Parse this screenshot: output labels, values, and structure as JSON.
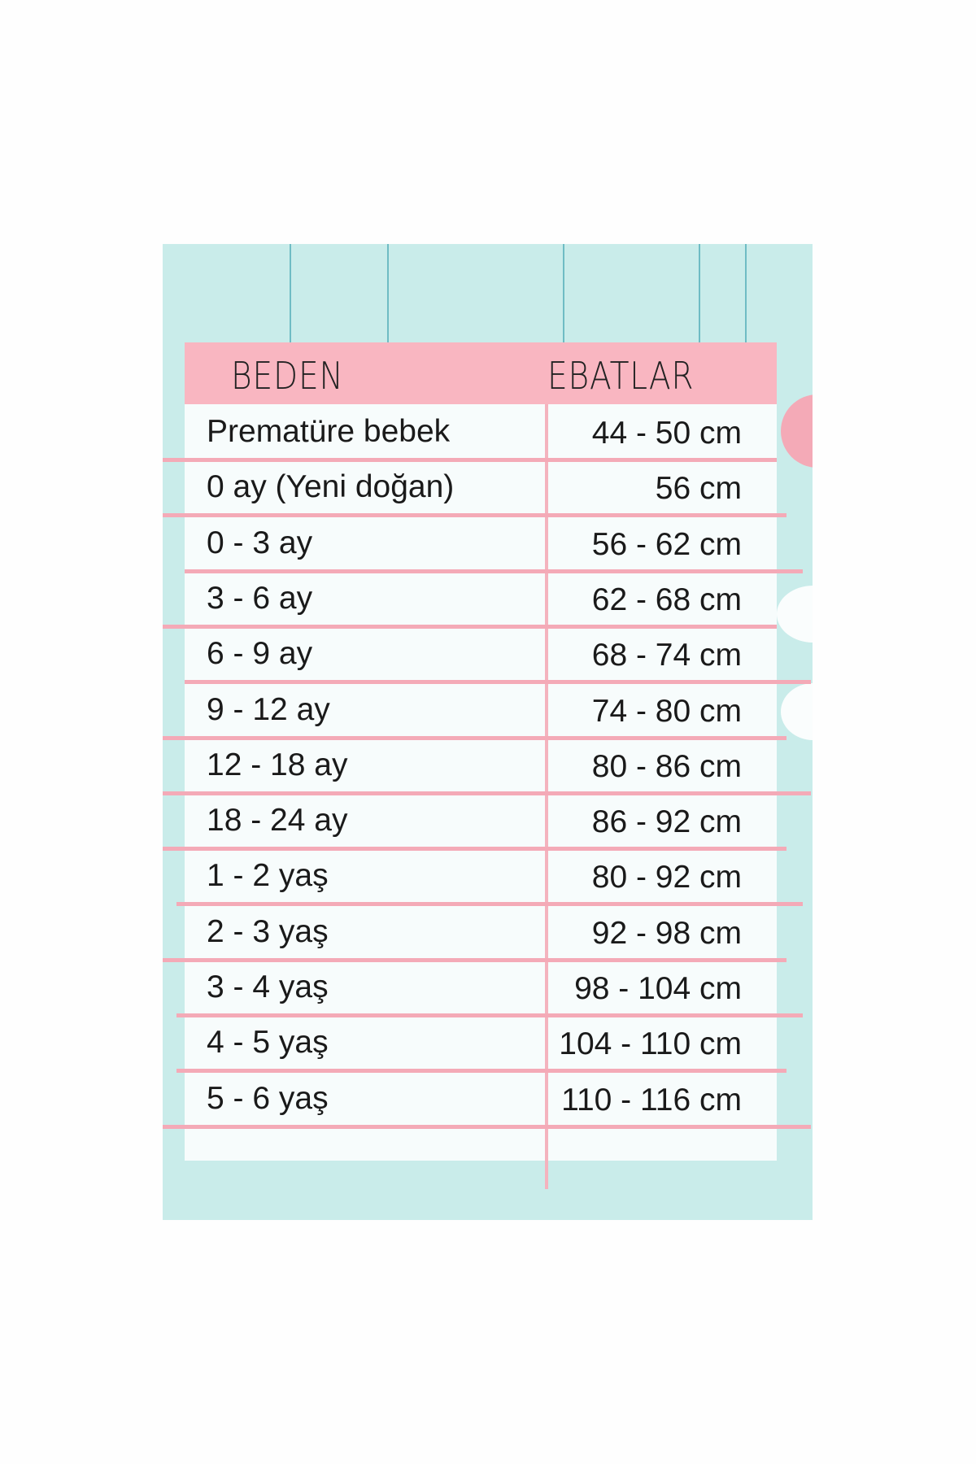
{
  "header": {
    "col1": "BEDEN",
    "col2": "EBATLAR"
  },
  "rows": [
    {
      "size": "Prematüre bebek",
      "measure": "44 - 50 cm"
    },
    {
      "size": "0 ay (Yeni doğan)",
      "measure": "56 cm"
    },
    {
      "size": "0 - 3 ay",
      "measure": "56 - 62 cm"
    },
    {
      "size": "3 - 6 ay",
      "measure": "62 - 68 cm"
    },
    {
      "size": "6 - 9 ay",
      "measure": "68 - 74 cm"
    },
    {
      "size": "9 - 12 ay",
      "measure": "74 - 80 cm"
    },
    {
      "size": "12 - 18 ay",
      "measure": "80 - 86 cm"
    },
    {
      "size": "18 - 24 ay",
      "measure": "86 - 92 cm"
    },
    {
      "size": "1 - 2 yaş",
      "measure": "80 - 92 cm"
    },
    {
      "size": "2 - 3 yaş",
      "measure": "92 - 98 cm"
    },
    {
      "size": "3 - 4 yaş",
      "measure": "98 - 104 cm"
    },
    {
      "size": "4 - 5 yaş",
      "measure": "104 - 110 cm"
    },
    {
      "size": "5 - 6 yaş",
      "measure": "110 - 116 cm"
    }
  ],
  "colors": {
    "background": "#c9ecea",
    "header": "#f9b6c1",
    "lines": "#f4aab7"
  }
}
